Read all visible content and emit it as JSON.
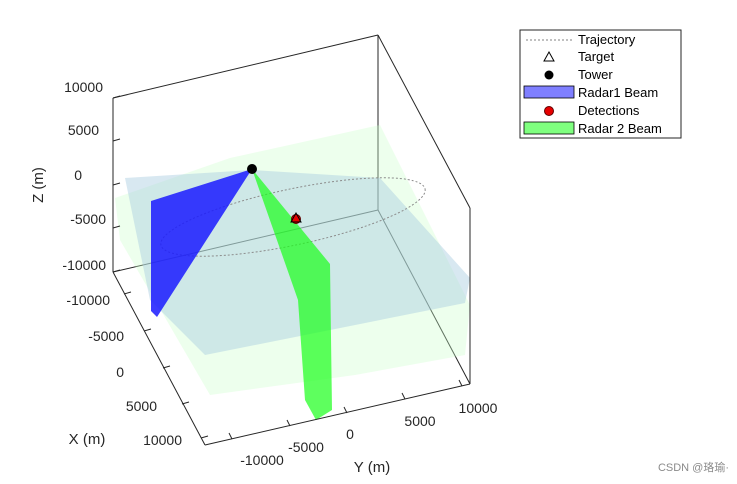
{
  "chart_data": {
    "type": "scatter",
    "projection": "3d",
    "xlabel": "X (m)",
    "ylabel": "Y (m)",
    "zlabel": "Z (m)",
    "x_ticks": [
      "-10000",
      "-5000",
      "0",
      "5000",
      "10000"
    ],
    "y_ticks": [
      "-10000",
      "-5000",
      "0",
      "5000",
      "10000"
    ],
    "z_ticks": [
      "-10000",
      "-5000",
      "0",
      "5000",
      "10000"
    ],
    "xlim": [
      -12000,
      12000
    ],
    "ylim": [
      -12000,
      12000
    ],
    "zlim": [
      -10000,
      10000
    ],
    "grid": false,
    "legend_position": "top-right",
    "legend": [
      {
        "label": "Trajectory",
        "marker": "dotted-line",
        "color": "#808080"
      },
      {
        "label": "Target",
        "marker": "triangle",
        "color": "#000000"
      },
      {
        "label": "Tower",
        "marker": "circle",
        "color": "#000000"
      },
      {
        "label": "Radar1 Beam",
        "marker": "patch",
        "color": "#7f7fff"
      },
      {
        "label": "Detections",
        "marker": "circle",
        "color": "#ff0000"
      },
      {
        "label": "Radar 2 Beam",
        "marker": "patch",
        "color": "#7fff7f"
      }
    ],
    "series": [
      {
        "name": "Tower",
        "points": [
          {
            "x": -8000,
            "y": -12000,
            "z": 0
          }
        ]
      },
      {
        "name": "Detections",
        "points": [
          {
            "x": -1800,
            "y": -5000,
            "z": -3000
          }
        ]
      },
      {
        "name": "Target",
        "points": [
          {
            "x": -1800,
            "y": -5000,
            "z": -3000
          }
        ]
      }
    ]
  },
  "colors": {
    "radar1_beam": "#1a1aff",
    "radar1_beam_plane": "#b9d6e6",
    "radar2_beam": "#1aff1a",
    "radar2_beam_plane": "#ccffcc",
    "trajectory": "#8c8c8c",
    "box": "#262626"
  },
  "watermark": "CSDN @珞瑜·"
}
